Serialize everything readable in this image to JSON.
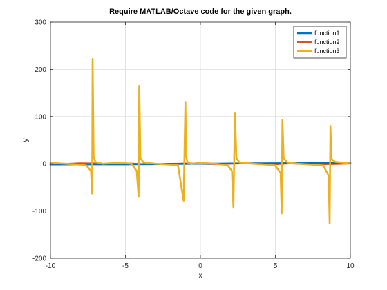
{
  "chart_data": {
    "type": "line",
    "title": "Require MATLAB/Octave code for the given graph.",
    "xlabel": "x",
    "ylabel": "y",
    "xlim": [
      -10,
      10
    ],
    "ylim": [
      -200,
      300
    ],
    "xticks": [
      -10,
      -5,
      0,
      5,
      10
    ],
    "yticks": [
      -200,
      -100,
      0,
      100,
      200,
      300
    ],
    "grid": true,
    "legend_position": "top-right",
    "series": [
      {
        "name": "function1",
        "color": "#0072bd",
        "x": [
          -10,
          -5,
          0,
          5,
          10
        ],
        "y": [
          -1.5,
          -1.2,
          0.0,
          1.2,
          1.5
        ]
      },
      {
        "name": "function2",
        "color": "#d95319",
        "x": [
          -10,
          -9,
          -8,
          -7,
          -6,
          -5,
          -4,
          -3,
          -2,
          -1,
          0,
          1,
          2,
          3,
          4,
          5,
          6,
          7,
          8,
          9,
          10
        ],
        "y": [
          0.5,
          -0.4,
          1.0,
          0.7,
          -1.0,
          1.0,
          -0.7,
          -1.0,
          -0.4,
          0.5,
          0,
          -0.5,
          0.4,
          1.0,
          0.7,
          -1.0,
          1.0,
          -0.7,
          -1.0,
          -0.4,
          0.5
        ]
      },
      {
        "name": "function3",
        "color": "#edb120",
        "x": [
          -10,
          -9,
          -8,
          -7.6,
          -7.3,
          -7.22,
          -7.19,
          -7.12,
          -7.0,
          -6.5,
          -5.5,
          -4.6,
          -4.25,
          -4.12,
          -4.08,
          -4.0,
          -3.8,
          -3.0,
          -2.0,
          -1.5,
          -1.12,
          -1.0,
          -0.95,
          -0.85,
          -0.6,
          0.0,
          1.0,
          1.8,
          2.1,
          2.2,
          2.3,
          2.4,
          2.6,
          3.5,
          4.5,
          5.0,
          5.35,
          5.42,
          5.47,
          5.55,
          5.8,
          6.5,
          7.5,
          8.2,
          8.55,
          8.62,
          8.67,
          8.75,
          9.0,
          10
        ],
        "y": [
          2,
          0,
          -2,
          -4,
          -15,
          -63,
          222,
          15,
          4,
          0,
          2,
          0,
          -15,
          -70,
          165,
          12,
          3,
          0,
          -2,
          -3,
          -78,
          130,
          14,
          3,
          0,
          2,
          0,
          -3,
          -15,
          -92,
          108,
          12,
          3,
          0,
          -2,
          -4,
          -20,
          -105,
          93,
          12,
          3,
          0,
          -2,
          -4,
          -25,
          -126,
          80,
          10,
          4,
          1
        ]
      }
    ]
  }
}
